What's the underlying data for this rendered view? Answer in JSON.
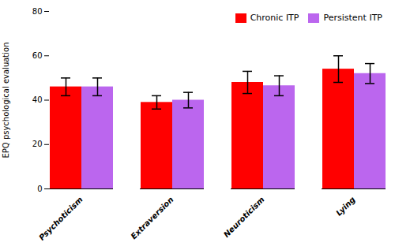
{
  "chart_data": {
    "type": "bar",
    "categories": [
      "Psychoticism",
      "Extraversion",
      "Neuroticism",
      "Lying"
    ],
    "series": [
      {
        "name": "Chronic ITP",
        "color": "#FF0000",
        "values": [
          46.0,
          39.0,
          48.0,
          54.0
        ],
        "errors": [
          4.0,
          3.0,
          5.0,
          6.0
        ]
      },
      {
        "name": "Persistent ITP",
        "color": "#BB66EE",
        "values": [
          46.0,
          40.0,
          46.5,
          52.0
        ],
        "errors": [
          4.0,
          3.5,
          4.5,
          4.5
        ]
      }
    ],
    "ylabel": "EPQ psychological evaluation",
    "ylim": [
      0,
      80
    ],
    "yticks": [
      0,
      20,
      40,
      60,
      80
    ],
    "grid": false,
    "legend": "upper right"
  }
}
